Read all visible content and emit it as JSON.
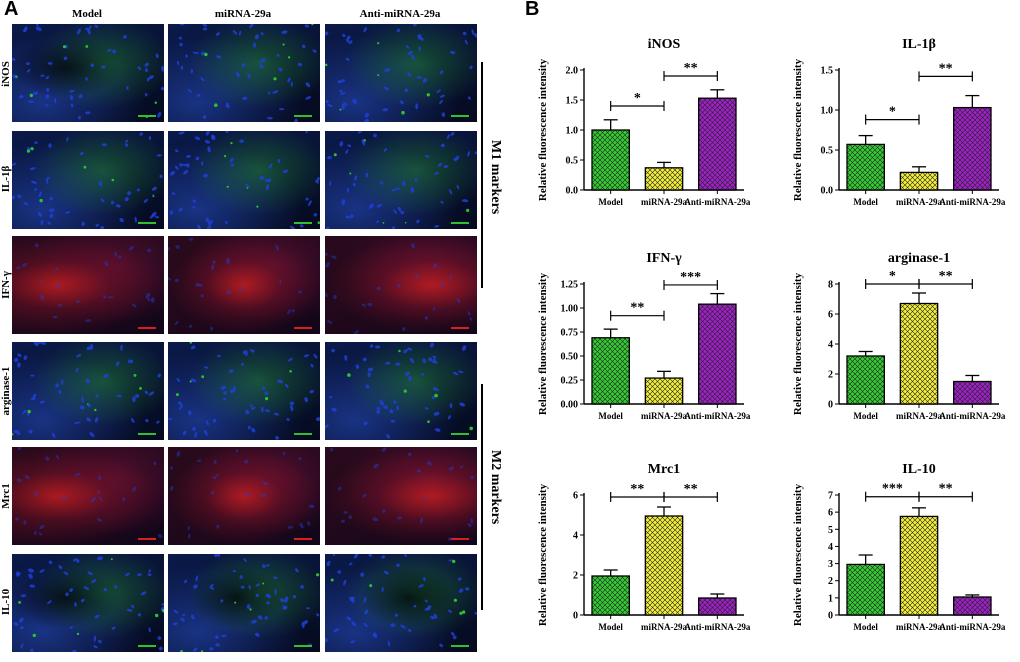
{
  "panel_a": {
    "letter": "A",
    "columns": [
      "Model",
      "miRNA-29a",
      "Anti-miRNA-29a"
    ],
    "rows": [
      {
        "label": "iNOS",
        "stain": "green"
      },
      {
        "label": "IL-1β",
        "stain": "green"
      },
      {
        "label": "IFN-γ",
        "stain": "red"
      },
      {
        "label": "arginase-1",
        "stain": "green"
      },
      {
        "label": "Mrc1",
        "stain": "red"
      },
      {
        "label": "IL-10",
        "stain": "green"
      }
    ],
    "groups": [
      "M1 markers",
      "M2 markers"
    ],
    "colors": {
      "nuclei": "#1f3fd6",
      "green_stain": "#2fbf2f",
      "red_stain": "#d62020",
      "background": "#050a1e"
    }
  },
  "panel_b": {
    "letter": "B",
    "colors": {
      "Model": "#33cc33",
      "miRNA-29a": "#f2ee3a",
      "Anti-miRNA-29a": "#a020c8"
    },
    "fill_pattern": "crosshatch"
  },
  "chart_data": [
    {
      "type": "bar",
      "title": "iNOS",
      "categories": [
        "Model",
        "miRNA-29a",
        "Anti-miRNA-29a"
      ],
      "values": [
        1.0,
        0.37,
        1.53
      ],
      "errors": [
        0.17,
        0.09,
        0.14
      ],
      "ylabel": "Relative fluorescence intensity",
      "xlabel": "",
      "ylim": [
        0,
        2.0
      ],
      "yticks": [
        "0.0",
        "0.5",
        "1.0",
        "1.5",
        "2.0"
      ],
      "ytick_values": [
        0,
        0.5,
        1.0,
        1.5,
        2.0
      ],
      "significance": [
        {
          "from": 0,
          "to": 1,
          "label": "*",
          "y": 1.4
        },
        {
          "from": 1,
          "to": 2,
          "label": "**",
          "y": 1.9
        }
      ]
    },
    {
      "type": "bar",
      "title": "IL-1β",
      "categories": [
        "Model",
        "miRNA-29a",
        "Anti-miRNA-29a"
      ],
      "values": [
        0.57,
        0.22,
        1.03
      ],
      "errors": [
        0.11,
        0.07,
        0.15
      ],
      "ylabel": "Relative fluorescence intensity",
      "xlabel": "",
      "ylim": [
        0,
        1.5
      ],
      "yticks": [
        "0.0",
        "0.5",
        "1.0",
        "1.5"
      ],
      "ytick_values": [
        0,
        0.5,
        1.0,
        1.5
      ],
      "significance": [
        {
          "from": 0,
          "to": 1,
          "label": "*",
          "y": 0.88
        },
        {
          "from": 1,
          "to": 2,
          "label": "**",
          "y": 1.42
        }
      ]
    },
    {
      "type": "bar",
      "title": "IFN-γ",
      "categories": [
        "Model",
        "miRNA-29a",
        "Anti-miRNA-29a"
      ],
      "values": [
        0.69,
        0.27,
        1.04
      ],
      "errors": [
        0.09,
        0.07,
        0.11
      ],
      "ylabel": "Relative fluorescence intensity",
      "xlabel": "",
      "ylim": [
        0,
        1.25
      ],
      "yticks": [
        "0.00",
        "0.25",
        "0.50",
        "0.75",
        "1.00",
        "1.25"
      ],
      "ytick_values": [
        0,
        0.25,
        0.5,
        0.75,
        1.0,
        1.25
      ],
      "significance": [
        {
          "from": 0,
          "to": 1,
          "label": "**",
          "y": 0.92
        },
        {
          "from": 1,
          "to": 2,
          "label": "***",
          "y": 1.24
        }
      ]
    },
    {
      "type": "bar",
      "title": "arginase-1",
      "categories": [
        "Model",
        "miRNA-29a",
        "Anti-miRNA-29a"
      ],
      "values": [
        3.2,
        6.7,
        1.5
      ],
      "errors": [
        0.3,
        0.7,
        0.4
      ],
      "ylabel": "Relative fluorescence intensity",
      "xlabel": "",
      "ylim": [
        0,
        8
      ],
      "yticks": [
        "0",
        "2",
        "4",
        "6",
        "8"
      ],
      "ytick_values": [
        0,
        2,
        4,
        6,
        8
      ],
      "significance": [
        {
          "from": 0,
          "to": 1,
          "label": "*",
          "y": 8.0
        },
        {
          "from": 1,
          "to": 2,
          "label": "**",
          "y": 8.0
        }
      ]
    },
    {
      "type": "bar",
      "title": "Mrc1",
      "categories": [
        "Model",
        "miRNA-29a",
        "Anti-miRNA-29a"
      ],
      "values": [
        1.95,
        4.95,
        0.85
      ],
      "errors": [
        0.3,
        0.45,
        0.2
      ],
      "ylabel": "Relative fluorescence intensity",
      "xlabel": "",
      "ylim": [
        0,
        6
      ],
      "yticks": [
        "0",
        "2",
        "4",
        "6"
      ],
      "ytick_values": [
        0,
        2,
        4,
        6
      ],
      "significance": [
        {
          "from": 0,
          "to": 1,
          "label": "**",
          "y": 5.9
        },
        {
          "from": 1,
          "to": 2,
          "label": "**",
          "y": 5.9
        }
      ]
    },
    {
      "type": "bar",
      "title": "IL-10",
      "categories": [
        "Model",
        "miRNA-29a",
        "Anti-miRNA-29a"
      ],
      "values": [
        2.95,
        5.75,
        1.05
      ],
      "errors": [
        0.55,
        0.5,
        0.12
      ],
      "ylabel": "Relative fluorescence intensity",
      "xlabel": "",
      "ylim": [
        0,
        7
      ],
      "yticks": [
        "0",
        "1",
        "2",
        "3",
        "4",
        "5",
        "6",
        "7"
      ],
      "ytick_values": [
        0,
        1,
        2,
        3,
        4,
        5,
        6,
        7
      ],
      "significance": [
        {
          "from": 0,
          "to": 1,
          "label": "***",
          "y": 6.9
        },
        {
          "from": 1,
          "to": 2,
          "label": "**",
          "y": 6.9
        }
      ]
    }
  ]
}
